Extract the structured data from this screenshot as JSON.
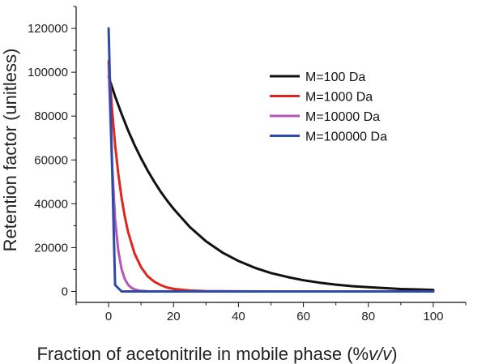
{
  "chart_data": {
    "type": "line",
    "title": "",
    "xlabel_prefix": "Fraction of acetonitrile in mobile phase (%",
    "xlabel_italic": "v/v",
    "xlabel_suffix": ")",
    "ylabel": "Retention factor (unitless)",
    "xlim": [
      -10,
      110
    ],
    "ylim": [
      -5000,
      130000
    ],
    "xticks": [
      0,
      20,
      40,
      60,
      80,
      100
    ],
    "yticks": [
      0,
      20000,
      40000,
      60000,
      80000,
      100000,
      120000
    ],
    "xtick_labels": [
      "0",
      "20",
      "40",
      "60",
      "80",
      "100"
    ],
    "ytick_labels": [
      "0",
      "20000",
      "40000",
      "60000",
      "80000",
      "100000",
      "120000"
    ],
    "legend_position": "top-right",
    "grid": false,
    "series": [
      {
        "name": "M=100 Da",
        "color": "#111111",
        "x": [
          0,
          2,
          4,
          6,
          8,
          10,
          12,
          14,
          16,
          18,
          20,
          25,
          30,
          35,
          40,
          45,
          50,
          55,
          60,
          65,
          70,
          75,
          80,
          85,
          90,
          95,
          100
        ],
        "y": [
          98000,
          89000,
          81000,
          73500,
          66800,
          60700,
          55200,
          50200,
          45600,
          41500,
          37700,
          29400,
          22900,
          17800,
          13900,
          10800,
          8400,
          6600,
          5100,
          4000,
          3100,
          2400,
          1900,
          1500,
          1100,
          900,
          700
        ]
      },
      {
        "name": "M=1000 Da",
        "color": "#e0251f",
        "x": [
          0,
          1,
          2,
          3,
          4,
          5,
          6,
          8,
          10,
          12,
          14,
          16,
          18,
          20,
          25,
          30,
          35,
          40,
          50,
          60,
          80,
          100
        ],
        "y": [
          105000,
          84000,
          67000,
          53500,
          42700,
          34100,
          27200,
          17300,
          11000,
          7000,
          4500,
          2900,
          1800,
          1150,
          400,
          130,
          50,
          15,
          0,
          0,
          0,
          0
        ]
      },
      {
        "name": "M=10000 Da",
        "color": "#b455b8",
        "x": [
          0,
          1,
          2,
          3,
          4,
          5,
          6,
          7,
          8,
          9,
          10,
          12,
          15,
          20,
          100
        ],
        "y": [
          103000,
          60000,
          33000,
          18500,
          10200,
          5600,
          3100,
          1700,
          950,
          520,
          290,
          90,
          15,
          0,
          0
        ]
      },
      {
        "name": "M=100000 Da",
        "color": "#2e4aa6",
        "x": [
          0,
          2,
          4,
          6,
          10,
          20,
          100
        ],
        "y": [
          120000,
          3000,
          0,
          0,
          0,
          0,
          0
        ]
      }
    ]
  }
}
